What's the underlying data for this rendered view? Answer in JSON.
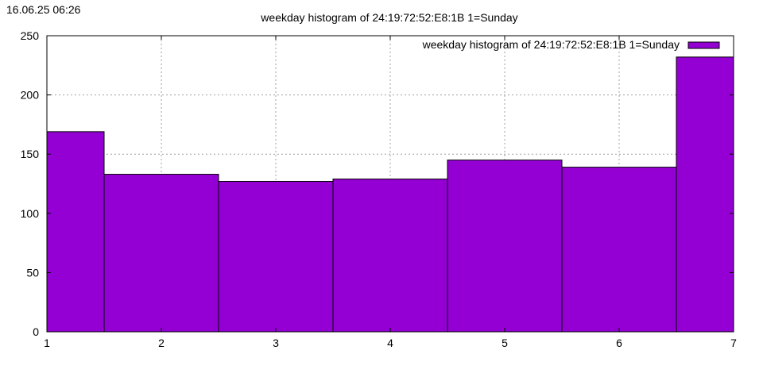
{
  "timestamp": "16.06.25 06:26",
  "chart_data": {
    "type": "bar",
    "title": "weekday histogram of 24:19:72:52:E8:1B 1=Sunday",
    "legend": {
      "label": "weekday histogram of 24:19:72:52:E8:1B 1=Sunday",
      "placement": "top-right"
    },
    "x": [
      1,
      2,
      3,
      4,
      5,
      6,
      7
    ],
    "values": [
      169,
      133,
      127,
      129,
      145,
      139,
      232
    ],
    "xlim": [
      1,
      7
    ],
    "ylim": [
      0,
      250
    ],
    "xticks": [
      1,
      2,
      3,
      4,
      5,
      6,
      7
    ],
    "yticks": [
      0,
      50,
      100,
      150,
      200,
      250
    ],
    "xlabel": "",
    "ylabel": "",
    "grid": true,
    "bar_color": "#9400d3",
    "bar_edge_color": "#000000"
  }
}
